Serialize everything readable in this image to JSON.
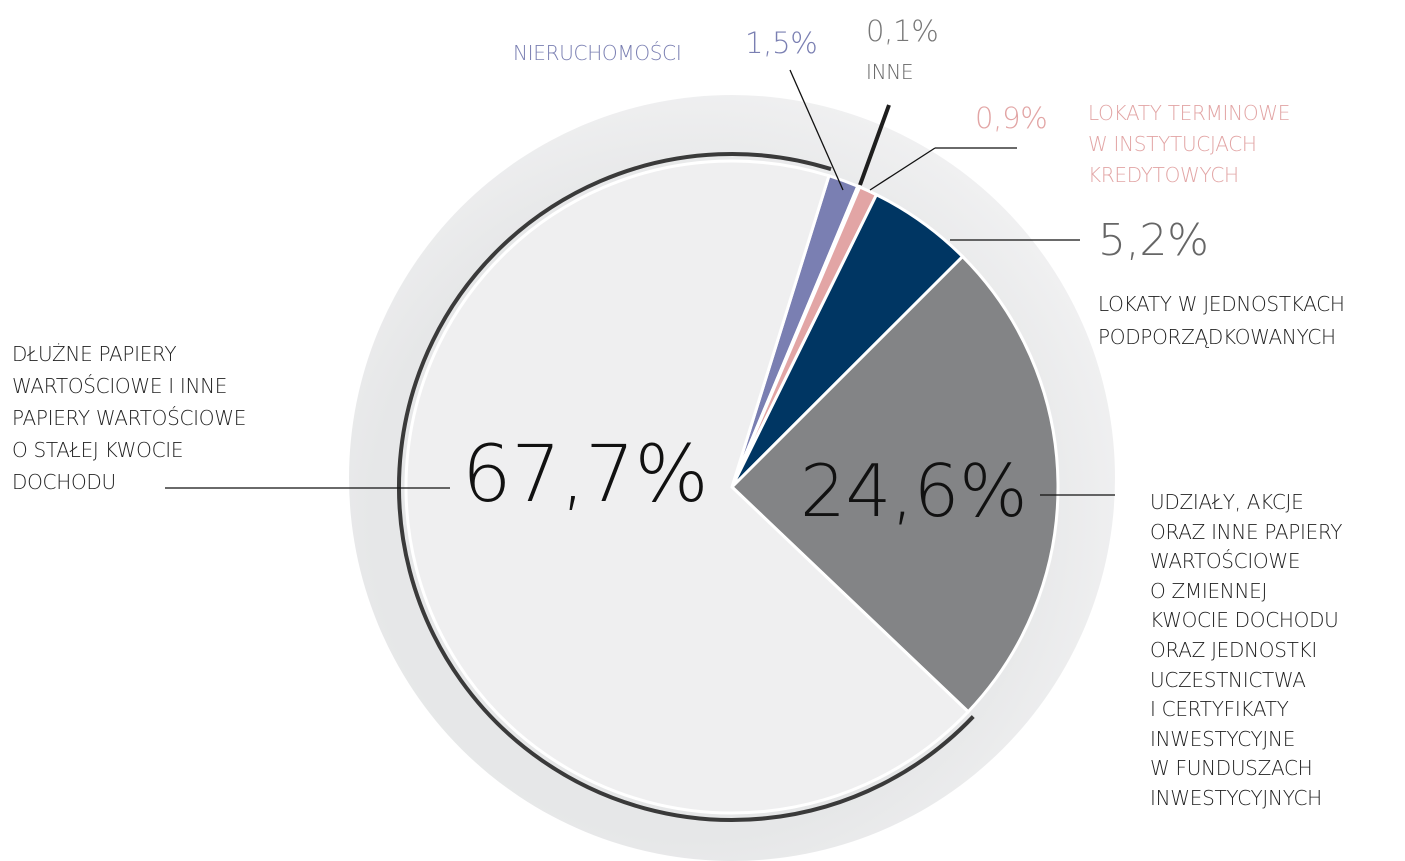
{
  "chart_data": {
    "type": "pie",
    "categories": [
      "NIERUCHOMOŚCI",
      "INNE",
      "LOKATY TERMINOWE\nW INSTYTUCJACH\nKREDYTOWYCH",
      "LOKATY W JEDNOSTKACH\nPODPORZĄDKOWANYCH",
      "UDZIAŁY, AKCJE\nORAZ INNE PAPIERY\nWARTOŚCIOWE\nO ZMIENNEJ\nKWOCIE DOCHODU\nORAZ JEDNOSTKI\nUCZESTNICTWA\nI CERTYFIKATY\nINWESTYCYJNE\nW FUNDUSZACH\nINWESTYCYJNYCH",
      "DŁUŻNE PAPIERY\nWARTOŚCIOWE I INNE\nPAPIERY WARTOŚCIOWE\nO STAŁEJ KWOCIE\nDOCHODU"
    ],
    "values": [
      1.5,
      0.1,
      0.9,
      5.2,
      24.6,
      67.7
    ],
    "value_labels": [
      "1,5%",
      "0,1%",
      "0,9%",
      "5,2%",
      "24,6%",
      "67,7%"
    ],
    "colors": [
      "#7a7fb2",
      "#1e1e1e",
      "#e2a5a5",
      "#003663",
      "#838486",
      "#efeff0"
    ]
  }
}
